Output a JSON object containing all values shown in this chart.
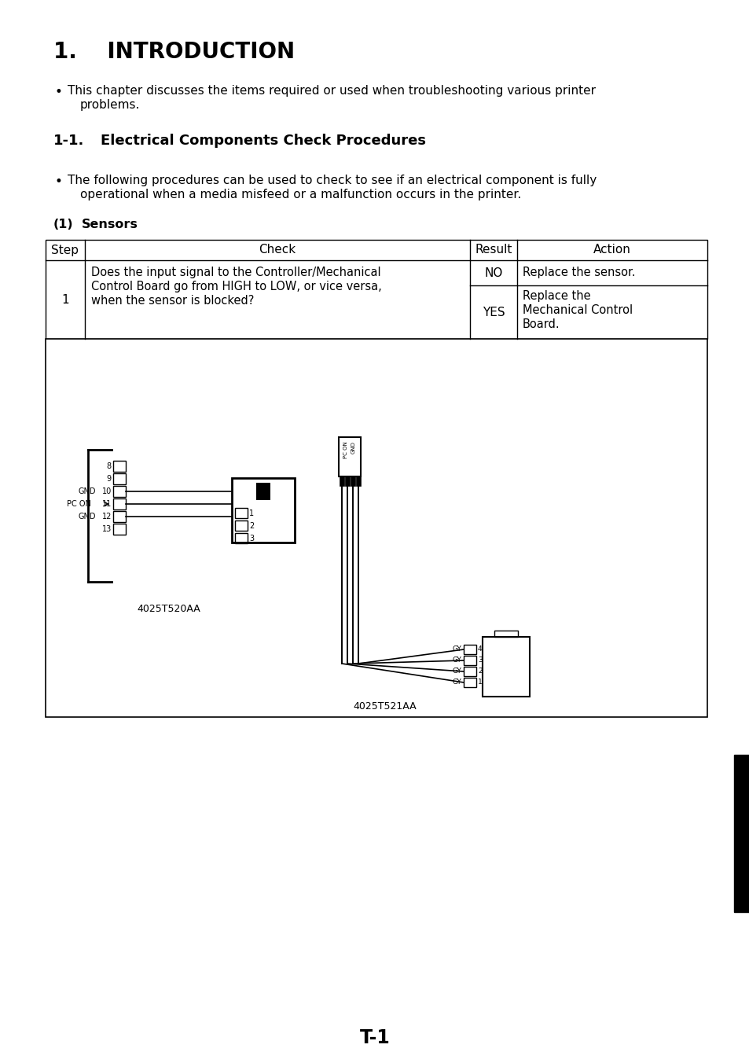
{
  "title_number": "1.",
  "title_text": "INTRODUCTION",
  "bullet1_line1": "This chapter discusses the items required or used when troubleshooting various printer",
  "bullet1_line2": "problems.",
  "subtitle_num": "1-1.",
  "subtitle_text": "Electrical Components Check Procedures",
  "bullet2_line1": "The following procedures can be used to check to see if an electrical component is fully",
  "bullet2_line2": "operational when a media misfeed or a malfunction occurs in the printer.",
  "section_label": "(1)",
  "section_text": "Sensors",
  "table_headers": [
    "Step",
    "Check",
    "Result",
    "Action"
  ],
  "table_row1_step": "1",
  "table_check_line1": "Does the input signal to the Controller/Mechanical",
  "table_check_line2": "Control Board go from HIGH to LOW, or vice versa,",
  "table_check_line3": "when the sensor is blocked?",
  "result_no": "NO",
  "action_no": "Replace the sensor.",
  "result_yes": "YES",
  "action_yes_line1": "Replace the",
  "action_yes_line2": "Mechanical Control",
  "action_yes_line3": "Board.",
  "diag_label1": "4025T520AA",
  "diag_label2": "4025T521AA",
  "page_number": "T-1",
  "bg_color": "#ffffff",
  "text_color": "#000000"
}
